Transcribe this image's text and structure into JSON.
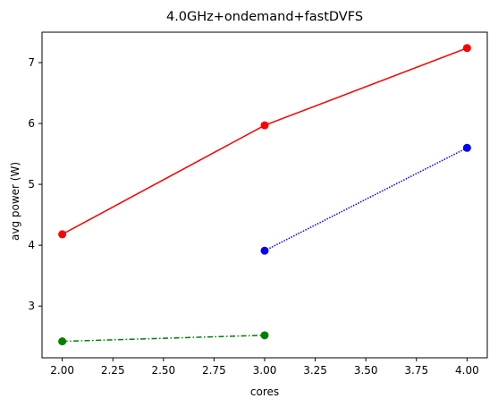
{
  "chart_data": {
    "type": "line",
    "title": "4.0GHz+ondemand+fastDVFS",
    "xlabel": "cores",
    "ylabel": "avg power (W)",
    "xlim": [
      1.9,
      4.1
    ],
    "ylim": [
      2.15,
      7.5
    ],
    "xticks": [
      2.0,
      2.25,
      2.5,
      2.75,
      3.0,
      3.25,
      3.5,
      3.75,
      4.0
    ],
    "xtick_labels": [
      "2.00",
      "2.25",
      "2.50",
      "2.75",
      "3.00",
      "3.25",
      "3.50",
      "3.75",
      "4.00"
    ],
    "yticks": [
      3,
      4,
      5,
      6,
      7
    ],
    "ytick_labels": [
      "3",
      "4",
      "5",
      "6",
      "7"
    ],
    "grid": false,
    "series": [
      {
        "color": "#ff0000",
        "style": "solid",
        "x": [
          2,
          3,
          4
        ],
        "y": [
          4.18,
          5.97,
          7.24
        ]
      },
      {
        "color": "#0000ff",
        "style": "dotted",
        "x": [
          3,
          4
        ],
        "y": [
          3.91,
          5.6
        ]
      },
      {
        "color": "#008000",
        "style": "dashdot",
        "x": [
          2,
          3
        ],
        "y": [
          2.42,
          2.52
        ]
      }
    ]
  }
}
